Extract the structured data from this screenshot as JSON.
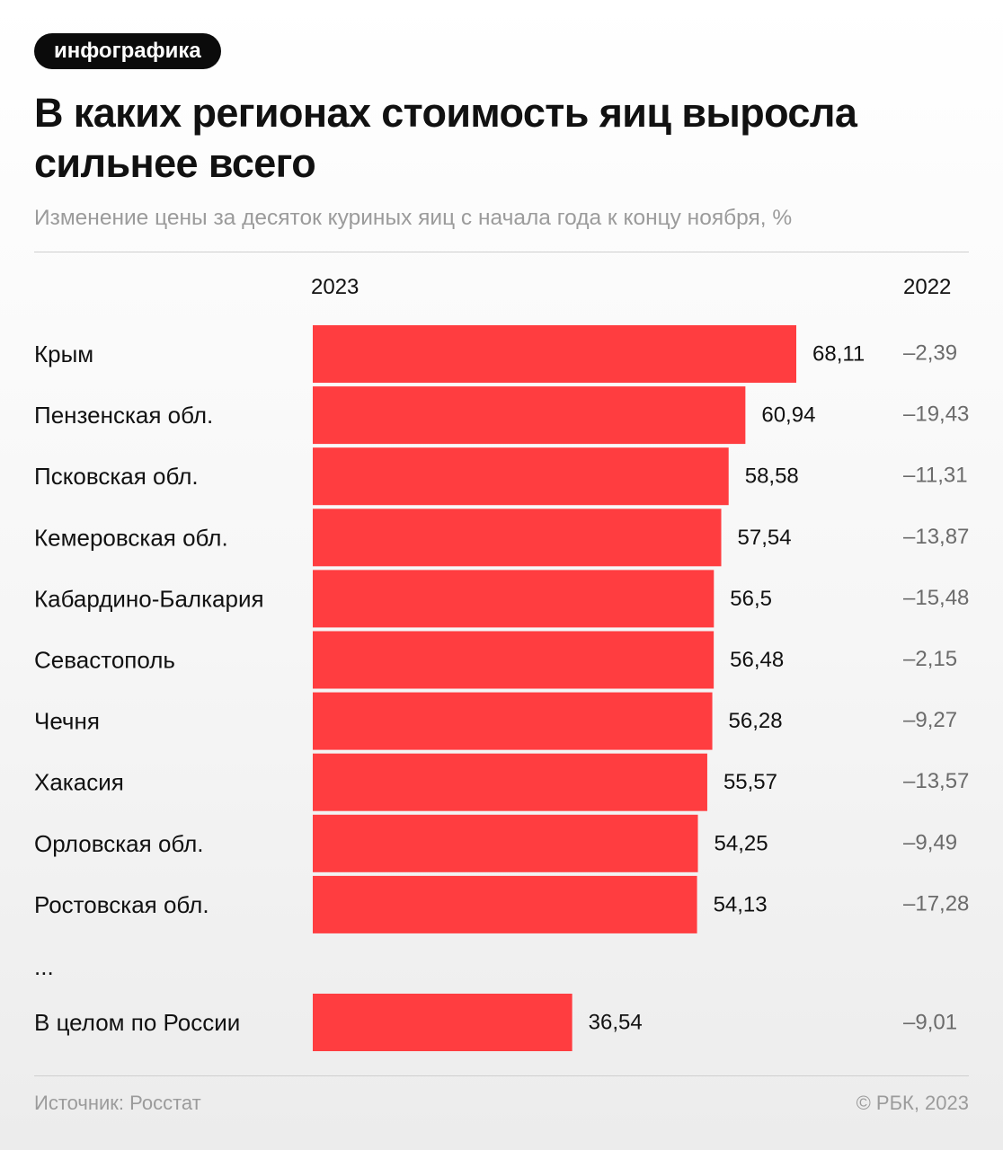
{
  "badge": "инфографика",
  "title": "В каких регионах стоимость яиц выросла сильнее всего",
  "subtitle": "Изменение цены за десяток куриных яиц с начала года к концу ноября, %",
  "colors": {
    "bar": "#ff3d40",
    "text": "#111111",
    "muted": "#9b9b9b"
  },
  "chart_data": {
    "type": "bar",
    "orientation": "horizontal",
    "column_headers": {
      "left": "2023",
      "right": "2022"
    },
    "categories": [
      "Крым",
      "Пензенская обл.",
      "Псковская обл.",
      "Кемеровская обл.",
      "Кабардино-Балкария",
      "Севастополь",
      "Чечня",
      "Хакасия",
      "Орловская обл.",
      "Ростовская обл."
    ],
    "series": [
      {
        "name": "2023",
        "values": [
          68.11,
          60.94,
          58.58,
          57.54,
          56.5,
          56.48,
          56.28,
          55.57,
          54.25,
          54.13
        ],
        "labels": [
          "68,11",
          "60,94",
          "58,58",
          "57,54",
          "56,5",
          "56,48",
          "56,28",
          "55,57",
          "54,25",
          "54,13"
        ]
      },
      {
        "name": "2022",
        "values": [
          -2.39,
          -19.43,
          -11.31,
          -13.87,
          -15.48,
          -2.15,
          -9.27,
          -13.57,
          -9.49,
          -17.28
        ],
        "labels": [
          "–2,39",
          "–19,43",
          "–11,31",
          "–13,87",
          "–15,48",
          "–2,15",
          "–9,27",
          "–13,57",
          "–9,49",
          "–17,28"
        ]
      }
    ],
    "ellipsis": "...",
    "total": {
      "category": "В целом по России",
      "value_2023": 36.54,
      "label_2023": "36,54",
      "value_2022": -9.01,
      "label_2022": "–9,01"
    },
    "xlim": [
      0,
      68.11
    ]
  },
  "footer": {
    "source": "Источник: Росстат",
    "copyright": "© РБК, 2023"
  }
}
